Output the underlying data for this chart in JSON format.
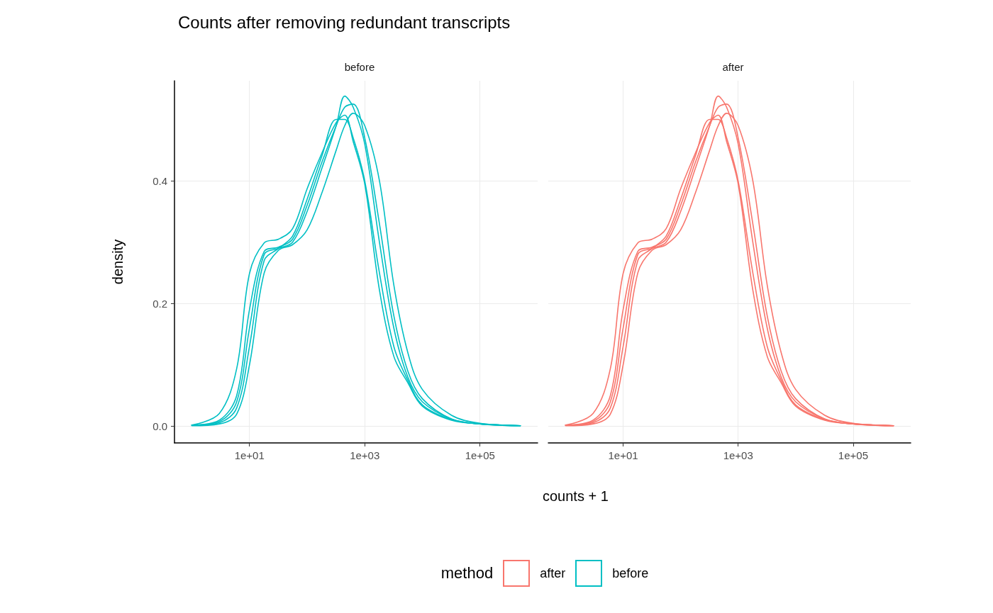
{
  "chart_data": [
    {
      "type": "line",
      "title": "Counts after removing redundant transcripts",
      "subtitle": "before",
      "xlabel": "counts + 1",
      "ylabel": "density",
      "log": "x",
      "grid": true,
      "marker": "none",
      "line_style": "solid",
      "tick_labels": "xy",
      "x": [
        1,
        3,
        6,
        10,
        18,
        32,
        56,
        100,
        180,
        320,
        450,
        630,
        1000,
        1800,
        3200,
        5600,
        10000,
        32000,
        100000,
        500000
      ],
      "xlim": [
        0.5,
        1000000
      ],
      "xticks": [
        {
          "value": 10,
          "label": "1e+01"
        },
        {
          "value": 1000,
          "label": "1e+03"
        },
        {
          "value": 100000,
          "label": "1e+05"
        }
      ],
      "ylim": [
        -0.027,
        0.563
      ],
      "yticks": [
        {
          "value": 0,
          "label": "0.0"
        },
        {
          "value": 0.2,
          "label": "0.2"
        },
        {
          "value": 0.4,
          "label": "0.4"
        }
      ],
      "series": [
        {
          "name": "before",
          "color": "#00bfc4",
          "values": [
            0.002,
            0.021,
            0.094,
            0.249,
            0.299,
            0.305,
            0.322,
            0.387,
            0.445,
            0.495,
            0.507,
            0.464,
            0.395,
            0.222,
            0.114,
            0.071,
            0.033,
            0.01,
            0.004,
            0.001
          ]
        },
        {
          "color": "#00bfc4",
          "values": [
            0.002,
            0.008,
            0.04,
            0.16,
            0.28,
            0.29,
            0.3,
            0.35,
            0.42,
            0.49,
            0.538,
            0.52,
            0.46,
            0.3,
            0.16,
            0.08,
            0.04,
            0.012,
            0.004,
            0.001
          ]
        },
        {
          "color": "#00bfc4",
          "values": [
            0.001,
            0.004,
            0.02,
            0.1,
            0.25,
            0.287,
            0.296,
            0.32,
            0.38,
            0.45,
            0.49,
            0.51,
            0.49,
            0.4,
            0.23,
            0.12,
            0.06,
            0.018,
            0.005,
            0.001
          ]
        },
        {
          "color": "#00bfc4",
          "values": [
            0.002,
            0.01,
            0.05,
            0.19,
            0.285,
            0.292,
            0.305,
            0.36,
            0.43,
            0.49,
            0.52,
            0.525,
            0.47,
            0.33,
            0.18,
            0.09,
            0.045,
            0.012,
            0.004,
            0.001
          ]
        },
        {
          "color": "#00bfc4",
          "values": [
            0.002,
            0.006,
            0.03,
            0.13,
            0.27,
            0.29,
            0.31,
            0.37,
            0.44,
            0.5,
            0.5,
            0.47,
            0.4,
            0.25,
            0.13,
            0.075,
            0.035,
            0.011,
            0.004,
            0.001
          ]
        }
      ]
    },
    {
      "type": "line",
      "subtitle": "after",
      "log": "x",
      "grid": true,
      "marker": "none",
      "line_style": "solid",
      "tick_labels": "x",
      "legend": "bottom",
      "legend_title": "method",
      "x": [
        1,
        3,
        6,
        10,
        18,
        32,
        56,
        100,
        180,
        320,
        450,
        630,
        1000,
        1800,
        3200,
        5600,
        10000,
        32000,
        100000,
        500000
      ],
      "xlim": [
        0.5,
        1000000
      ],
      "xticks": [
        {
          "value": 10,
          "label": "1e+01"
        },
        {
          "value": 1000,
          "label": "1e+03"
        },
        {
          "value": 100000,
          "label": "1e+05"
        }
      ],
      "ylim": [
        -0.027,
        0.563
      ],
      "yticks": [
        0,
        0.2,
        0.4
      ],
      "series": [
        {
          "name": "after",
          "color": "#f8766d",
          "values": [
            0.002,
            0.021,
            0.094,
            0.249,
            0.299,
            0.305,
            0.322,
            0.387,
            0.445,
            0.495,
            0.507,
            0.464,
            0.395,
            0.222,
            0.114,
            0.071,
            0.033,
            0.01,
            0.004,
            0.001
          ]
        },
        {
          "color": "#f8766d",
          "values": [
            0.002,
            0.008,
            0.04,
            0.16,
            0.28,
            0.29,
            0.3,
            0.35,
            0.42,
            0.49,
            0.538,
            0.52,
            0.46,
            0.3,
            0.16,
            0.08,
            0.04,
            0.012,
            0.004,
            0.001
          ]
        },
        {
          "color": "#f8766d",
          "values": [
            0.001,
            0.004,
            0.02,
            0.1,
            0.25,
            0.287,
            0.296,
            0.32,
            0.38,
            0.45,
            0.49,
            0.51,
            0.49,
            0.4,
            0.23,
            0.12,
            0.06,
            0.018,
            0.005,
            0.001
          ]
        },
        {
          "color": "#f8766d",
          "values": [
            0.002,
            0.01,
            0.05,
            0.19,
            0.285,
            0.292,
            0.305,
            0.36,
            0.43,
            0.49,
            0.52,
            0.525,
            0.47,
            0.33,
            0.18,
            0.09,
            0.045,
            0.012,
            0.004,
            0.001
          ]
        },
        {
          "color": "#f8766d",
          "values": [
            0.002,
            0.006,
            0.03,
            0.13,
            0.27,
            0.29,
            0.31,
            0.37,
            0.44,
            0.5,
            0.5,
            0.47,
            0.4,
            0.25,
            0.13,
            0.075,
            0.035,
            0.011,
            0.004,
            0.001
          ]
        }
      ]
    }
  ]
}
